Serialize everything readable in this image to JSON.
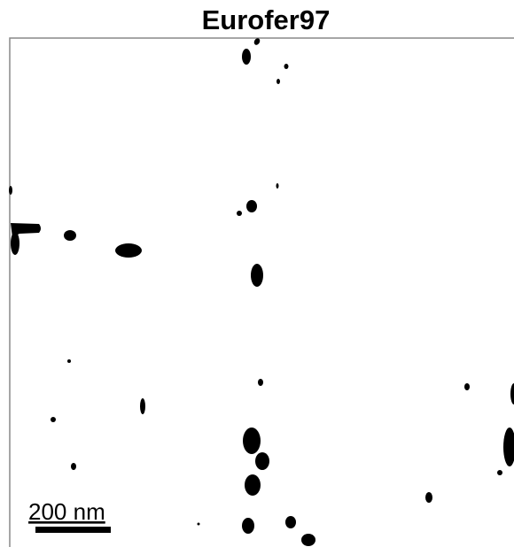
{
  "title": "Eurofer97",
  "scale_bar": {
    "label": "200 nm"
  }
}
